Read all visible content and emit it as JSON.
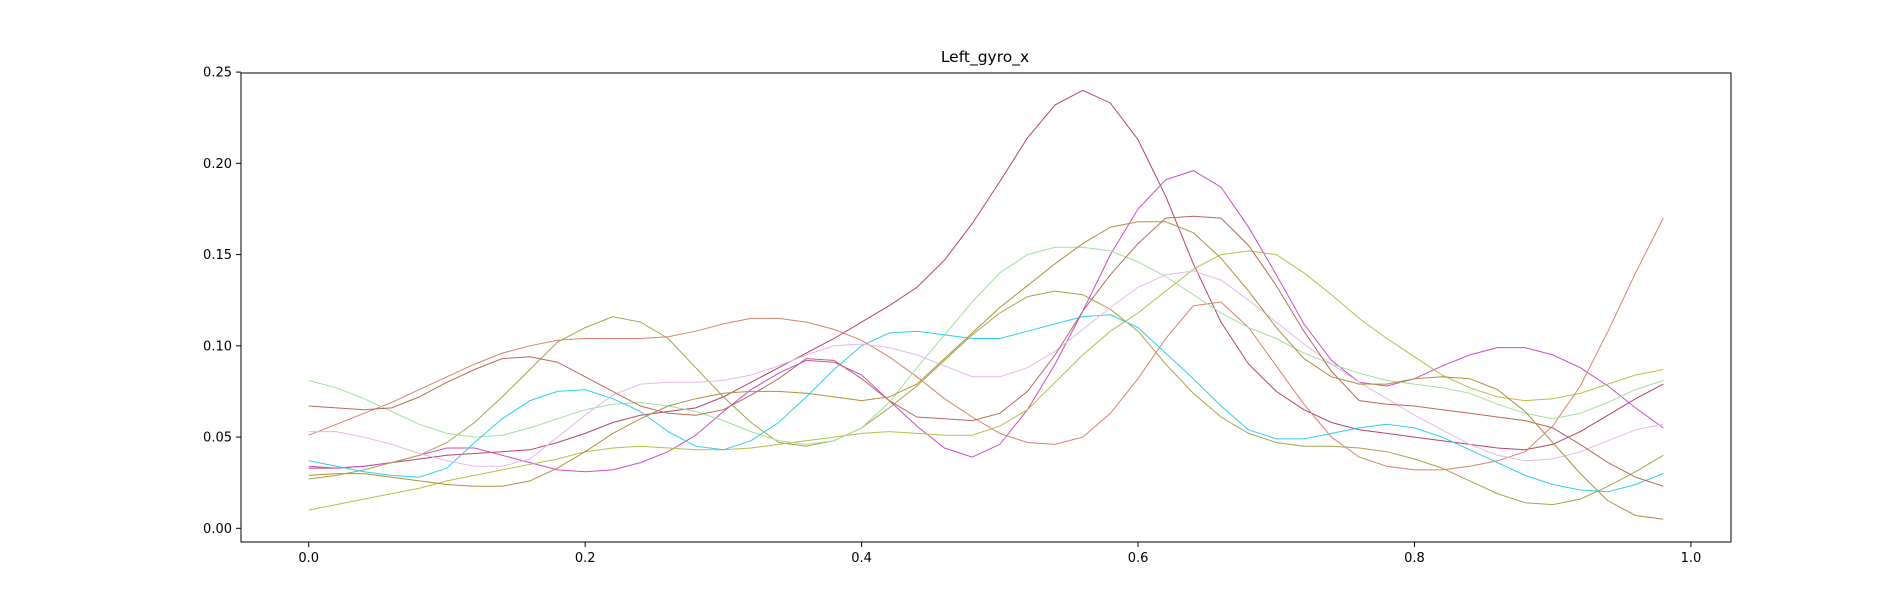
{
  "chart_data": {
    "type": "line",
    "title": "Left_gyro_x",
    "xlabel": "",
    "ylabel": "",
    "xlim": [
      -0.049,
      1.029
    ],
    "ylim": [
      -0.0075,
      0.2495
    ],
    "xticks": [
      0.0,
      0.2,
      0.4,
      0.6,
      0.8,
      1.0
    ],
    "xtick_labels": [
      "0.0",
      "0.2",
      "0.4",
      "0.6",
      "0.8",
      "1.0"
    ],
    "yticks": [
      0.0,
      0.05,
      0.1,
      0.15,
      0.2,
      0.25
    ],
    "ytick_labels": [
      "0.00",
      "0.05",
      "0.10",
      "0.15",
      "0.20",
      "0.25"
    ],
    "grid": false,
    "legend": "none",
    "x": [
      0.0,
      0.02,
      0.04,
      0.06,
      0.08,
      0.1,
      0.12,
      0.14,
      0.16,
      0.18,
      0.2,
      0.22,
      0.24,
      0.26,
      0.28,
      0.3,
      0.32,
      0.34,
      0.36,
      0.38,
      0.4,
      0.42,
      0.44,
      0.46,
      0.48,
      0.5,
      0.52,
      0.54,
      0.56,
      0.58,
      0.6,
      0.62,
      0.64,
      0.66,
      0.68,
      0.7,
      0.72,
      0.74,
      0.76,
      0.78,
      0.8,
      0.82,
      0.84,
      0.86,
      0.88,
      0.9,
      0.92,
      0.94,
      0.96,
      0.98
    ],
    "series": [
      {
        "color": "#b5426e",
        "values": [
          0.033,
          0.033,
          0.034,
          0.036,
          0.038,
          0.04,
          0.041,
          0.042,
          0.043,
          0.047,
          0.052,
          0.058,
          0.062,
          0.064,
          0.066,
          0.072,
          0.08,
          0.088,
          0.096,
          0.104,
          0.113,
          0.122,
          0.132,
          0.147,
          0.167,
          0.19,
          0.214,
          0.232,
          0.24,
          0.233,
          0.213,
          0.182,
          0.145,
          0.113,
          0.09,
          0.075,
          0.065,
          0.058,
          0.054,
          0.052,
          0.05,
          0.048,
          0.046,
          0.044,
          0.043,
          0.046,
          0.053,
          0.062,
          0.071,
          0.079
        ]
      },
      {
        "color": "#cc4dc8",
        "values": [
          0.034,
          0.033,
          0.034,
          0.036,
          0.04,
          0.044,
          0.044,
          0.04,
          0.036,
          0.032,
          0.031,
          0.032,
          0.036,
          0.042,
          0.051,
          0.064,
          0.076,
          0.085,
          0.092,
          0.091,
          0.084,
          0.07,
          0.056,
          0.044,
          0.039,
          0.046,
          0.065,
          0.09,
          0.119,
          0.15,
          0.175,
          0.191,
          0.196,
          0.187,
          0.165,
          0.139,
          0.112,
          0.092,
          0.08,
          0.078,
          0.082,
          0.089,
          0.095,
          0.099,
          0.099,
          0.095,
          0.088,
          0.078,
          0.066,
          0.055
        ]
      },
      {
        "color": "#d9826b",
        "values": [
          0.051,
          0.057,
          0.063,
          0.069,
          0.076,
          0.083,
          0.09,
          0.096,
          0.1,
          0.103,
          0.104,
          0.104,
          0.104,
          0.105,
          0.108,
          0.112,
          0.115,
          0.115,
          0.113,
          0.109,
          0.103,
          0.094,
          0.083,
          0.071,
          0.061,
          0.052,
          0.047,
          0.046,
          0.05,
          0.063,
          0.082,
          0.104,
          0.122,
          0.124,
          0.11,
          0.089,
          0.068,
          0.05,
          0.039,
          0.034,
          0.032,
          0.032,
          0.034,
          0.037,
          0.042,
          0.056,
          0.078,
          0.108,
          0.14,
          0.17
        ]
      },
      {
        "color": "#a8a44a",
        "values": [
          0.027,
          0.029,
          0.032,
          0.036,
          0.04,
          0.047,
          0.058,
          0.072,
          0.087,
          0.102,
          0.11,
          0.116,
          0.113,
          0.104,
          0.088,
          0.072,
          0.058,
          0.047,
          0.045,
          0.048,
          0.055,
          0.066,
          0.078,
          0.092,
          0.106,
          0.118,
          0.127,
          0.13,
          0.128,
          0.12,
          0.108,
          0.09,
          0.074,
          0.061,
          0.052,
          0.047,
          0.045,
          0.045,
          0.044,
          0.042,
          0.038,
          0.033,
          0.026,
          0.019,
          0.014,
          0.013,
          0.016,
          0.023,
          0.031,
          0.04
        ]
      },
      {
        "color": "#b5bf48",
        "values": [
          0.01,
          0.013,
          0.016,
          0.019,
          0.022,
          0.026,
          0.029,
          0.032,
          0.035,
          0.038,
          0.042,
          0.044,
          0.045,
          0.044,
          0.043,
          0.043,
          0.044,
          0.046,
          0.048,
          0.05,
          0.052,
          0.053,
          0.052,
          0.051,
          0.051,
          0.056,
          0.065,
          0.08,
          0.095,
          0.108,
          0.118,
          0.13,
          0.142,
          0.15,
          0.152,
          0.15,
          0.14,
          0.128,
          0.115,
          0.104,
          0.094,
          0.084,
          0.077,
          0.072,
          0.07,
          0.071,
          0.074,
          0.079,
          0.084,
          0.087
        ]
      },
      {
        "color": "#a0e0a0",
        "values": [
          0.081,
          0.077,
          0.071,
          0.064,
          0.057,
          0.052,
          0.05,
          0.051,
          0.055,
          0.06,
          0.065,
          0.068,
          0.069,
          0.067,
          0.064,
          0.059,
          0.053,
          0.048,
          0.046,
          0.048,
          0.055,
          0.069,
          0.088,
          0.106,
          0.124,
          0.14,
          0.15,
          0.154,
          0.154,
          0.152,
          0.146,
          0.138,
          0.128,
          0.118,
          0.11,
          0.104,
          0.096,
          0.09,
          0.085,
          0.081,
          0.079,
          0.077,
          0.074,
          0.068,
          0.063,
          0.06,
          0.063,
          0.069,
          0.076,
          0.081
        ]
      },
      {
        "color": "#2ed0e8",
        "values": [
          0.037,
          0.034,
          0.031,
          0.029,
          0.028,
          0.033,
          0.047,
          0.06,
          0.07,
          0.075,
          0.076,
          0.071,
          0.064,
          0.053,
          0.045,
          0.043,
          0.048,
          0.058,
          0.072,
          0.087,
          0.1,
          0.107,
          0.108,
          0.106,
          0.104,
          0.104,
          0.108,
          0.112,
          0.116,
          0.117,
          0.11,
          0.096,
          0.082,
          0.067,
          0.054,
          0.049,
          0.049,
          0.052,
          0.055,
          0.057,
          0.055,
          0.05,
          0.043,
          0.036,
          0.029,
          0.024,
          0.021,
          0.02,
          0.024,
          0.03
        ]
      },
      {
        "color": "#e8b8e8",
        "values": [
          0.053,
          0.053,
          0.05,
          0.046,
          0.041,
          0.037,
          0.034,
          0.034,
          0.038,
          0.05,
          0.062,
          0.073,
          0.079,
          0.08,
          0.08,
          0.081,
          0.084,
          0.089,
          0.095,
          0.1,
          0.101,
          0.099,
          0.095,
          0.089,
          0.083,
          0.083,
          0.088,
          0.097,
          0.109,
          0.121,
          0.132,
          0.139,
          0.141,
          0.136,
          0.125,
          0.113,
          0.101,
          0.09,
          0.08,
          0.071,
          0.062,
          0.054,
          0.046,
          0.04,
          0.037,
          0.038,
          0.042,
          0.048,
          0.054,
          0.057
        ]
      },
      {
        "color": "#b86a5a",
        "values": [
          0.067,
          0.066,
          0.065,
          0.066,
          0.072,
          0.08,
          0.087,
          0.093,
          0.094,
          0.091,
          0.083,
          0.075,
          0.067,
          0.063,
          0.062,
          0.065,
          0.073,
          0.082,
          0.093,
          0.092,
          0.082,
          0.07,
          0.061,
          0.06,
          0.059,
          0.063,
          0.075,
          0.095,
          0.119,
          0.139,
          0.156,
          0.17,
          0.171,
          0.17,
          0.155,
          0.133,
          0.108,
          0.086,
          0.07,
          0.068,
          0.067,
          0.065,
          0.063,
          0.061,
          0.059,
          0.055,
          0.046,
          0.036,
          0.028,
          0.023
        ]
      },
      {
        "color": "#b09040",
        "values": [
          0.029,
          0.03,
          0.03,
          0.028,
          0.026,
          0.024,
          0.023,
          0.023,
          0.026,
          0.033,
          0.042,
          0.052,
          0.06,
          0.067,
          0.071,
          0.074,
          0.075,
          0.075,
          0.074,
          0.072,
          0.07,
          0.072,
          0.079,
          0.093,
          0.107,
          0.121,
          0.133,
          0.145,
          0.156,
          0.165,
          0.168,
          0.168,
          0.162,
          0.148,
          0.13,
          0.11,
          0.093,
          0.083,
          0.079,
          0.079,
          0.082,
          0.083,
          0.082,
          0.076,
          0.064,
          0.047,
          0.03,
          0.015,
          0.007,
          0.005
        ]
      }
    ]
  }
}
